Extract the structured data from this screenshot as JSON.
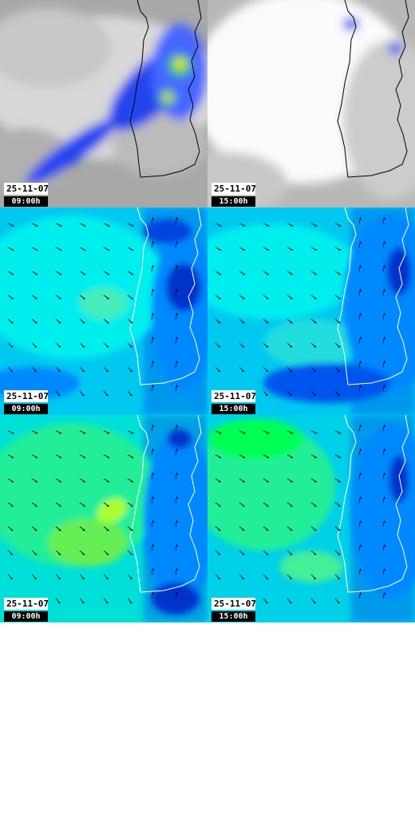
{
  "panels": [
    {
      "date": "25-11-07",
      "time": "09:00h"
    },
    {
      "date": "25-11-07",
      "time": "15:00h"
    },
    {
      "date": "25-11-07",
      "time": "09:00h"
    },
    {
      "date": "25-11-07",
      "time": "15:00h"
    },
    {
      "date": "25-11-07",
      "time": "09:00h"
    },
    {
      "date": "25-11-07",
      "time": "15:00h"
    }
  ]
}
